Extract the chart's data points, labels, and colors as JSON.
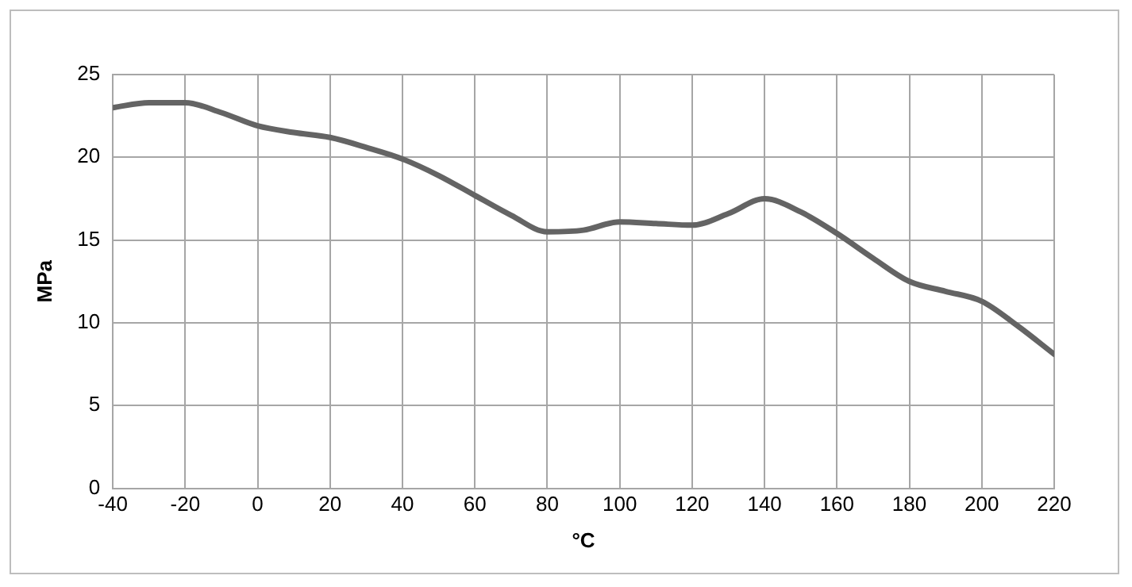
{
  "chart_data": {
    "type": "line",
    "xlabel": "°C",
    "ylabel": "MPa",
    "x": [
      -40,
      -30,
      -20,
      -10,
      0,
      10,
      20,
      30,
      40,
      50,
      60,
      70,
      80,
      90,
      100,
      110,
      120,
      130,
      140,
      150,
      160,
      170,
      180,
      190,
      200,
      210,
      220
    ],
    "series": [
      {
        "color": "#646464",
        "values": [
          23.0,
          23.3,
          23.3,
          22.7,
          21.9,
          21.5,
          21.2,
          20.6,
          19.9,
          18.9,
          17.7,
          16.5,
          15.5,
          15.6,
          16.1,
          16.0,
          15.9,
          16.6,
          17.5,
          16.7,
          15.4,
          13.9,
          12.5,
          11.9,
          11.3,
          9.8,
          8.1
        ]
      }
    ],
    "xlim": [
      -40,
      220
    ],
    "xticks": [
      -40,
      -20,
      0,
      20,
      40,
      60,
      80,
      100,
      120,
      140,
      160,
      180,
      200,
      220
    ],
    "ylim": [
      0,
      25
    ],
    "yticks": [
      0,
      5,
      10,
      15,
      20,
      25
    ],
    "grid": true,
    "legend": false,
    "marker": "none",
    "line_style": "solid"
  }
}
